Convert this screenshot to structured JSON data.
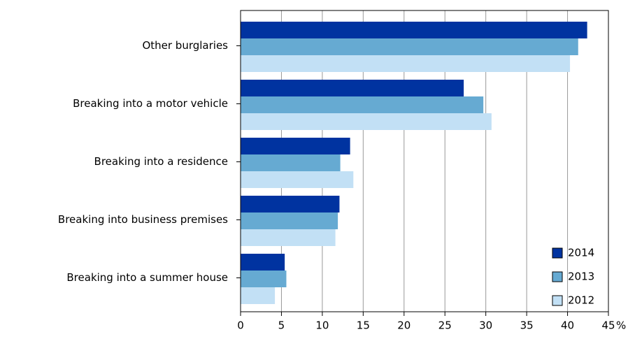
{
  "chart_data": {
    "type": "bar",
    "orientation": "horizontal",
    "categories": [
      "Other burglaries",
      "Breaking into a motor vehicle",
      "Breaking into a residence",
      "Breaking into business premises",
      "Breaking into a summer house"
    ],
    "series": [
      {
        "name": "2014",
        "color": "#0033a0",
        "values": [
          42.4,
          27.3,
          13.4,
          12.1,
          5.4
        ]
      },
      {
        "name": "2013",
        "color": "#66aad2",
        "values": [
          41.3,
          29.7,
          12.2,
          11.9,
          5.6
        ]
      },
      {
        "name": "2012",
        "color": "#c2e0f5",
        "values": [
          40.3,
          30.7,
          13.8,
          11.6,
          4.2
        ]
      }
    ],
    "x_unit": "%",
    "xlim": [
      0,
      45
    ],
    "xticks": [
      0,
      5,
      10,
      15,
      20,
      25,
      30,
      35,
      40,
      45
    ],
    "grid": true,
    "legend": "lower right"
  }
}
